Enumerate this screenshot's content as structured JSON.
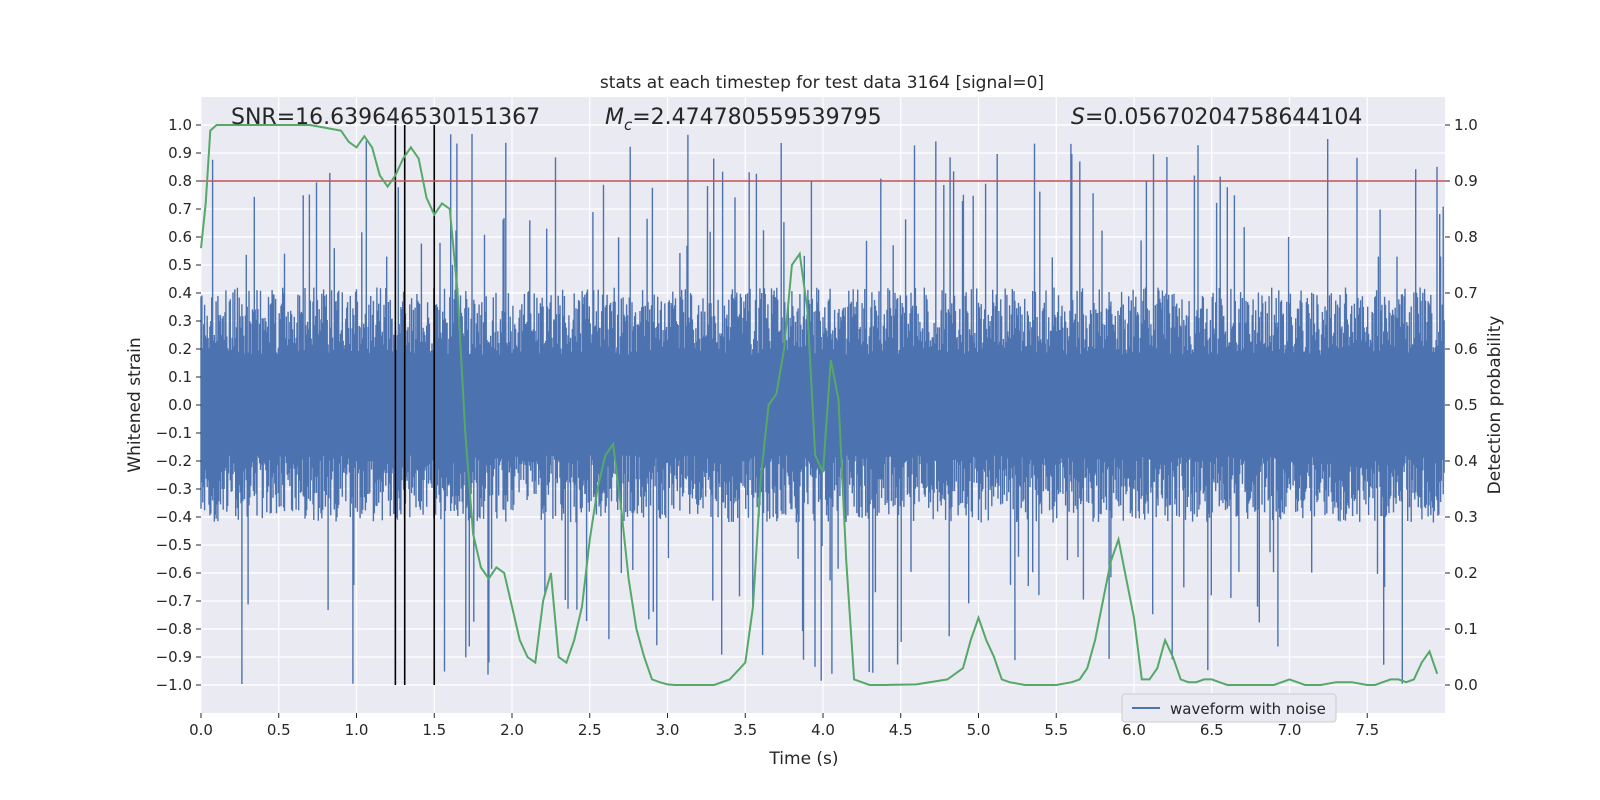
{
  "chart_data": {
    "type": "line",
    "title": "stats at each timestep for test data 3164 [signal=0]",
    "xlabel": "Time (s)",
    "ylabel_left": "Whitened strain",
    "ylabel_right": "Detection probability",
    "xlim": [
      0,
      8
    ],
    "ylim_left": [
      -1.1,
      1.1
    ],
    "ylim_right": [
      -0.05,
      1.05
    ],
    "x_ticks": [
      "0.0",
      "0.5",
      "1.0",
      "1.5",
      "2.0",
      "2.5",
      "3.0",
      "3.5",
      "4.0",
      "4.5",
      "5.0",
      "5.5",
      "6.0",
      "6.5",
      "7.0",
      "7.5"
    ],
    "x_tick_values": [
      0,
      0.5,
      1,
      1.5,
      2,
      2.5,
      3,
      3.5,
      4,
      4.5,
      5,
      5.5,
      6,
      6.5,
      7,
      7.5
    ],
    "y_left_ticks": [
      "1.0",
      "0.9",
      "0.8",
      "0.7",
      "0.6",
      "0.5",
      "0.4",
      "0.3",
      "0.2",
      "0.1",
      "0.0",
      "−0.1",
      "−0.2",
      "−0.3",
      "−0.4",
      "−0.5",
      "−0.6",
      "−0.7",
      "−0.8",
      "−0.9",
      "−1.0"
    ],
    "y_left_tick_values": [
      1,
      0.9,
      0.8,
      0.7,
      0.6,
      0.5,
      0.4,
      0.3,
      0.2,
      0.1,
      0,
      -0.1,
      -0.2,
      -0.3,
      -0.4,
      -0.5,
      -0.6,
      -0.7,
      -0.8,
      -0.9,
      -1
    ],
    "y_right_ticks": [
      "1.0",
      "0.9",
      "0.8",
      "0.7",
      "0.6",
      "0.5",
      "0.4",
      "0.3",
      "0.2",
      "0.1",
      "0.0"
    ],
    "y_right_tick_values": [
      1,
      0.9,
      0.8,
      0.7,
      0.6,
      0.5,
      0.4,
      0.3,
      0.2,
      0.1,
      0
    ],
    "annotations": {
      "snr": "SNR=16.639646530151367",
      "mc_symbol": "M",
      "mc_sub": "c",
      "mc_value": "=2.474780559539795",
      "s_symbol": "S",
      "s_value": "=0.05670204758644104"
    },
    "threshold": {
      "value": 0.9,
      "axis": "right",
      "color": "#c44e52"
    },
    "vertical_markers": [
      1.25,
      1.31,
      1.5
    ],
    "legend": {
      "label": "waveform with noise",
      "placement": "lower right"
    },
    "series": [
      {
        "name": "waveform with noise",
        "axis": "left",
        "color": "#4c72b0",
        "kind": "noise",
        "n_samples": 1400,
        "envelope": 0.4,
        "spike_range": [
          -1.0,
          0.97
        ]
      },
      {
        "name": "detection probability",
        "axis": "right",
        "color": "#55a868",
        "x": [
          0,
          0.03,
          0.06,
          0.1,
          0.15,
          0.2,
          0.3,
          0.5,
          0.7,
          0.9,
          0.95,
          1.0,
          1.05,
          1.1,
          1.15,
          1.2,
          1.25,
          1.3,
          1.35,
          1.4,
          1.45,
          1.5,
          1.55,
          1.6,
          1.65,
          1.7,
          1.75,
          1.8,
          1.85,
          1.9,
          1.95,
          2.0,
          2.05,
          2.1,
          2.15,
          2.2,
          2.25,
          2.3,
          2.35,
          2.4,
          2.45,
          2.5,
          2.55,
          2.6,
          2.65,
          2.7,
          2.75,
          2.8,
          2.85,
          2.9,
          2.95,
          3.0,
          3.05,
          3.1,
          3.2,
          3.3,
          3.4,
          3.5,
          3.55,
          3.6,
          3.65,
          3.7,
          3.75,
          3.8,
          3.85,
          3.9,
          3.95,
          4.0,
          4.05,
          4.1,
          4.15,
          4.2,
          4.25,
          4.3,
          4.4,
          4.6,
          4.8,
          4.9,
          4.95,
          5.0,
          5.05,
          5.1,
          5.15,
          5.2,
          5.3,
          5.5,
          5.6,
          5.65,
          5.7,
          5.75,
          5.8,
          5.85,
          5.9,
          5.95,
          6.0,
          6.05,
          6.1,
          6.15,
          6.2,
          6.25,
          6.3,
          6.35,
          6.4,
          6.45,
          6.5,
          6.55,
          6.6,
          6.7,
          6.8,
          6.9,
          7.0,
          7.05,
          7.1,
          7.2,
          7.3,
          7.4,
          7.5,
          7.55,
          7.6,
          7.65,
          7.7,
          7.75,
          7.8,
          7.85,
          7.9,
          7.95
        ],
        "y": [
          0.78,
          0.86,
          0.99,
          1.0,
          1.0,
          1.0,
          1.0,
          1.0,
          1.0,
          0.99,
          0.97,
          0.96,
          0.98,
          0.96,
          0.91,
          0.89,
          0.91,
          0.94,
          0.96,
          0.94,
          0.87,
          0.84,
          0.86,
          0.85,
          0.7,
          0.45,
          0.27,
          0.21,
          0.19,
          0.21,
          0.2,
          0.14,
          0.08,
          0.05,
          0.04,
          0.15,
          0.2,
          0.05,
          0.04,
          0.08,
          0.14,
          0.26,
          0.35,
          0.41,
          0.43,
          0.32,
          0.19,
          0.1,
          0.05,
          0.01,
          0.005,
          0.001,
          0.0,
          0.0,
          0.0,
          0.0,
          0.01,
          0.04,
          0.14,
          0.37,
          0.5,
          0.52,
          0.6,
          0.75,
          0.77,
          0.67,
          0.41,
          0.38,
          0.58,
          0.51,
          0.22,
          0.01,
          0.005,
          0.0,
          0.0,
          0.001,
          0.01,
          0.03,
          0.08,
          0.12,
          0.08,
          0.05,
          0.01,
          0.005,
          0.0,
          0.0,
          0.005,
          0.01,
          0.03,
          0.08,
          0.15,
          0.22,
          0.26,
          0.19,
          0.12,
          0.01,
          0.01,
          0.03,
          0.08,
          0.05,
          0.01,
          0.005,
          0.005,
          0.01,
          0.01,
          0.005,
          0.0,
          0.0,
          0.0,
          0.0,
          0.01,
          0.005,
          0.0,
          0.0,
          0.005,
          0.005,
          0.0,
          0.0,
          0.005,
          0.01,
          0.01,
          0.005,
          0.01,
          0.04,
          0.06,
          0.02
        ]
      }
    ]
  }
}
